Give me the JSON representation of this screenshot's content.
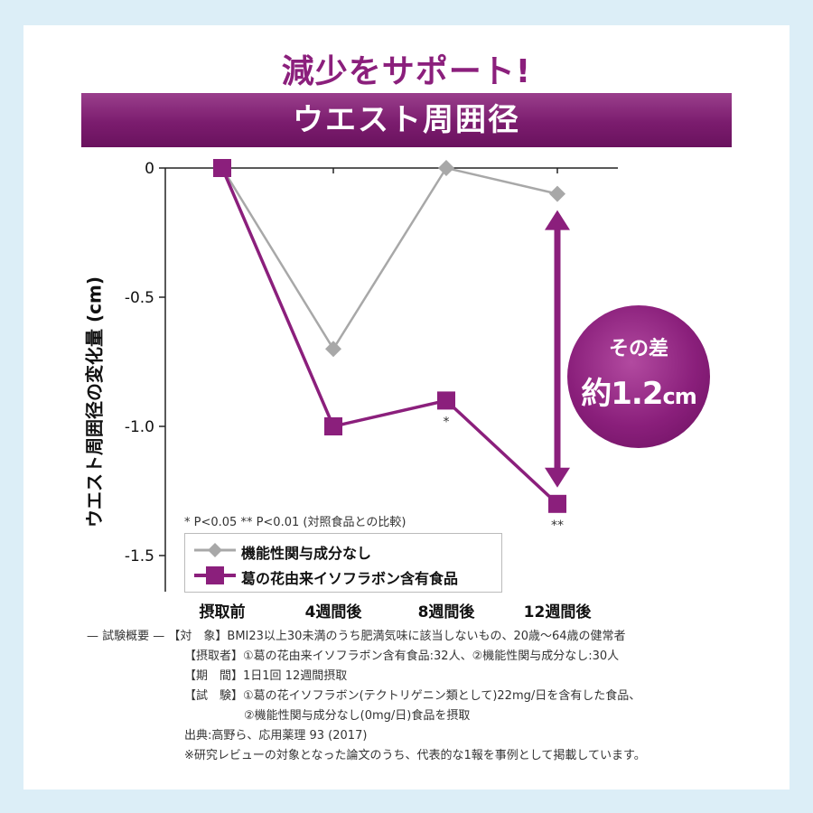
{
  "headline": "減少をサポート!",
  "banner": "ウエスト周囲径",
  "bubble": {
    "line1": "その差",
    "line2_main": "約1.2",
    "line2_unit": "cm"
  },
  "significance_note": "* P<0.05 ** P<0.01 (対照食品との比較)",
  "legend": {
    "control": "機能性関与成分なし",
    "treatment": "葛の花由来イソフラボン含有食品"
  },
  "chart_data": {
    "type": "line",
    "categories": [
      "摂取前",
      "4週間後",
      "8週間後",
      "12週間後"
    ],
    "ylabel": "ウエスト周囲径の変化量 (cm)",
    "ylim": [
      -1.5,
      0
    ],
    "y_ticks": [
      "0",
      "-0.5",
      "-1.0",
      "-1.5"
    ],
    "y_tick_values": [
      0,
      -0.5,
      -1.0,
      -1.5
    ],
    "series": [
      {
        "name": "機能性関与成分なし",
        "values": [
          0,
          -0.7,
          0,
          -0.1
        ],
        "color": "#a8a8a8",
        "marker": "diamond",
        "annotations": [
          "",
          "",
          "",
          ""
        ]
      },
      {
        "name": "葛の花由来イソフラボン含有食品",
        "values": [
          0,
          -1.0,
          -0.9,
          -1.3
        ],
        "color": "#8b1f7c",
        "marker": "square",
        "annotations": [
          "",
          "",
          "*",
          "**"
        ]
      }
    ],
    "difference_arrow": {
      "category": "12週間後",
      "from": -0.1,
      "to": -1.3
    },
    "grid": false
  },
  "notes": [
    "— 試験概要 — 【対　象】BMI23以上30未満のうち肥満気味に該当しないもの、20歳～64歳の健常者",
    "【摂取者】①葛の花由来イソフラボン含有食品:32人、②機能性関与成分なし:30人",
    "【期　間】1日1回 12週間摂取",
    "【試　験】①葛の花イソフラボン(テクトリゲニン類として)22mg/日を含有した食品、",
    "②機能性関与成分なし(0mg/日)食品を摂取",
    "出典:高野ら、応用薬理 93 (2017)",
    "※研究レビューの対象となった論文のうち、代表的な1報を事例として掲載しています。"
  ],
  "colors": {
    "brand": "#8b1f7c",
    "control": "#a8a8a8",
    "background": "#dceef7"
  }
}
